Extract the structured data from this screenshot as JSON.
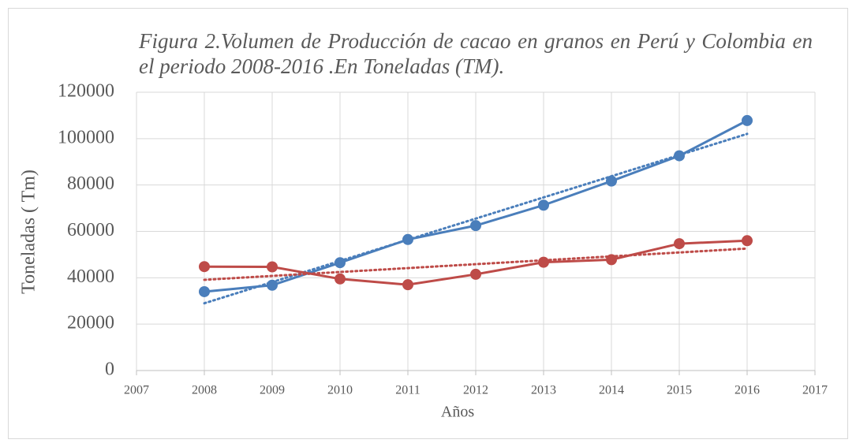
{
  "chart_data": {
    "type": "line",
    "title": "Figura 2.Volumen de Producción de cacao en granos en Perú y Colombia en el periodo 2008-2016 .En Toneladas (TM).",
    "x_label": "Años",
    "y_label": "Toneladas ( Tm)",
    "x": [
      2008,
      2009,
      2010,
      2011,
      2012,
      2013,
      2014,
      2015,
      2016
    ],
    "series": [
      {
        "color": "#4a7ebb",
        "trendline": "linear",
        "values": [
          34000,
          36800,
          46500,
          56500,
          62500,
          71300,
          81700,
          92600,
          107800
        ]
      },
      {
        "color": "#be4b48",
        "trendline": "linear",
        "values": [
          44800,
          44700,
          39500,
          37000,
          41500,
          46700,
          47800,
          54700,
          56000
        ]
      }
    ],
    "xlim": [
      2007,
      2017
    ],
    "xticks": [
      2007,
      2008,
      2009,
      2010,
      2011,
      2012,
      2013,
      2014,
      2015,
      2016,
      2017
    ],
    "ylim": [
      0,
      120000
    ],
    "yticks": [
      0,
      20000,
      40000,
      60000,
      80000,
      100000,
      120000
    ],
    "grid": true
  }
}
